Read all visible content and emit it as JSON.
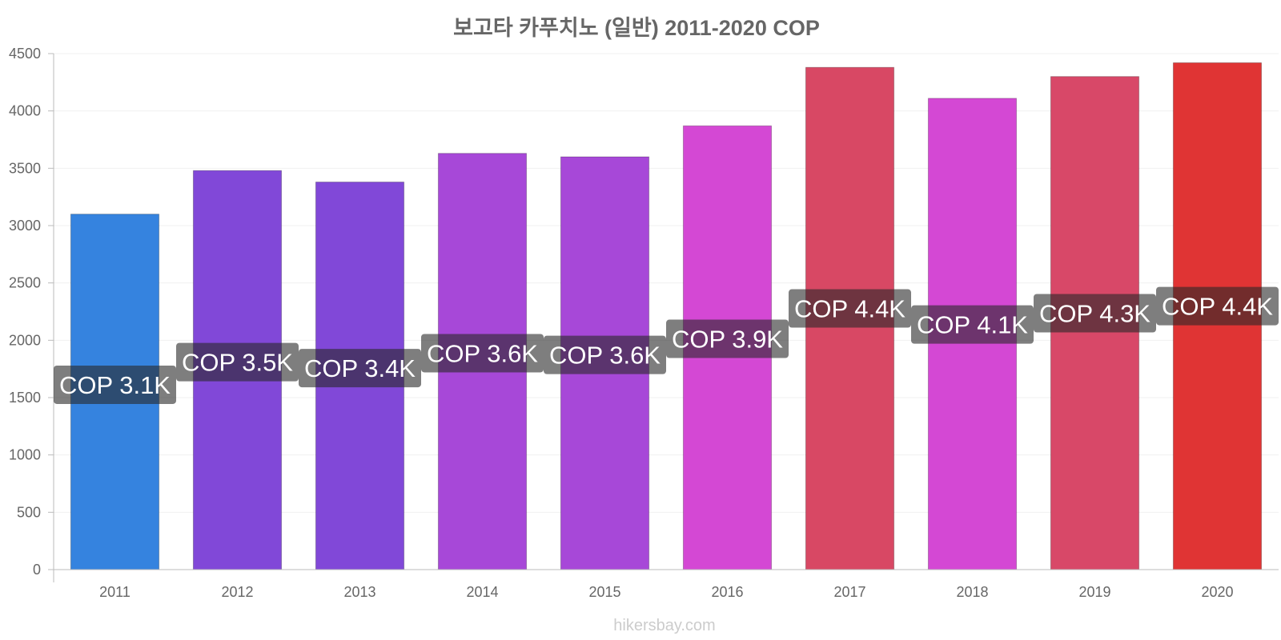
{
  "chart_data": {
    "type": "bar",
    "title": "보고타 카푸치노 (일반) 2011-2020 COP",
    "xlabel": "",
    "ylabel": "",
    "ylim": [
      0,
      4500
    ],
    "yticks": [
      0,
      500,
      1000,
      1500,
      2000,
      2500,
      3000,
      3500,
      4000,
      4500
    ],
    "grid": true,
    "categories": [
      "2011",
      "2012",
      "2013",
      "2014",
      "2015",
      "2016",
      "2017",
      "2018",
      "2019",
      "2020"
    ],
    "values": [
      3100,
      3480,
      3380,
      3630,
      3600,
      3870,
      4380,
      4110,
      4300,
      4420
    ],
    "data_labels": [
      "COP 3.1K",
      "COP 3.5K",
      "COP 3.4K",
      "COP 3.6K",
      "COP 3.6K",
      "COP 3.9K",
      "COP 4.4K",
      "COP 4.1K",
      "COP 4.3K",
      "COP 4.4K"
    ],
    "colors": [
      "#3583df",
      "#8148d8",
      "#8148d8",
      "#a748d8",
      "#a748d8",
      "#d448d4",
      "#d84864",
      "#d448d4",
      "#d84868",
      "#e03434"
    ]
  },
  "watermark": "hikersbay.com"
}
